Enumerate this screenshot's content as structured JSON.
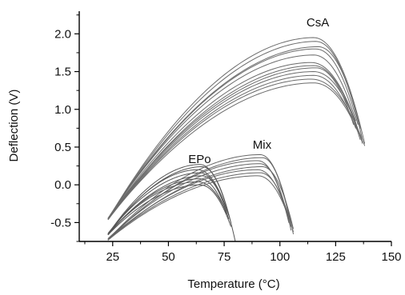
{
  "chart_data": {
    "type": "line",
    "title": "",
    "xlabel": "Temperature (°C)",
    "ylabel": "Deflection (V)",
    "xlim": [
      10,
      150
    ],
    "ylim": [
      -0.75,
      2.3
    ],
    "x_ticks": [
      25,
      50,
      75,
      100,
      125,
      150
    ],
    "y_ticks": [
      -0.5,
      0.0,
      0.5,
      1.0,
      1.5,
      2.0
    ],
    "x_tick_labels": [
      "25",
      "50",
      "75",
      "100",
      "125",
      "150"
    ],
    "y_tick_labels": [
      "-0.5",
      "0.0",
      "0.5",
      "1.0",
      "1.5",
      "2.0"
    ],
    "grid": false,
    "legend": "none",
    "groups": [
      {
        "name": "CsA",
        "color": "#6b6b6b",
        "label_at": [
          117,
          2.1
        ],
        "curves": [
          {
            "x0": 23,
            "y0": -0.45,
            "xp": 115,
            "yp": 1.95,
            "xe": 138,
            "ye": 0.55
          },
          {
            "x0": 23,
            "y0": -0.45,
            "xp": 116,
            "yp": 1.9,
            "xe": 137,
            "ye": 0.6
          },
          {
            "x0": 23,
            "y0": -0.44,
            "xp": 117,
            "yp": 1.83,
            "xe": 136,
            "ye": 0.75
          },
          {
            "x0": 23,
            "y0": -0.45,
            "xp": 116,
            "yp": 1.8,
            "xe": 135,
            "ye": 0.8
          },
          {
            "x0": 23,
            "y0": -0.44,
            "xp": 115,
            "yp": 1.72,
            "xe": 134,
            "ye": 0.85
          },
          {
            "x0": 23,
            "y0": -0.45,
            "xp": 114,
            "yp": 1.62,
            "xe": 137,
            "ye": 0.55
          },
          {
            "x0": 23,
            "y0": -0.46,
            "xp": 115,
            "yp": 1.58,
            "xe": 136,
            "ye": 0.6
          },
          {
            "x0": 23,
            "y0": -0.44,
            "xp": 116,
            "yp": 1.55,
            "xe": 133,
            "ye": 0.8
          },
          {
            "x0": 23,
            "y0": -0.45,
            "xp": 115,
            "yp": 1.5,
            "xe": 136,
            "ye": 0.65
          },
          {
            "x0": 23,
            "y0": -0.45,
            "xp": 115,
            "yp": 1.45,
            "xe": 134,
            "ye": 0.75
          },
          {
            "x0": 23,
            "y0": -0.46,
            "xp": 114,
            "yp": 1.4,
            "xe": 138,
            "ye": 0.52
          },
          {
            "x0": 23,
            "y0": -0.45,
            "xp": 115,
            "yp": 1.35,
            "xe": 135,
            "ye": 0.7
          }
        ]
      },
      {
        "name": "EPo",
        "color": "#555555",
        "label_at": [
          64,
          0.29
        ],
        "curves": [
          {
            "x0": 23,
            "y0": -0.65,
            "xp": 64,
            "yp": 0.27,
            "xe": 80,
            "ye": -0.75
          },
          {
            "x0": 23,
            "y0": -0.66,
            "xp": 65,
            "yp": 0.24,
            "xe": 78,
            "ye": -0.5
          },
          {
            "x0": 23,
            "y0": -0.65,
            "xp": 63,
            "yp": 0.2,
            "xe": 77,
            "ye": -0.4
          },
          {
            "x0": 23,
            "y0": -0.64,
            "xp": 64,
            "yp": 0.16,
            "xe": 76,
            "ye": -0.35
          },
          {
            "x0": 23,
            "y0": -0.66,
            "xp": 65,
            "yp": 0.12,
            "xe": 77,
            "ye": -0.45
          },
          {
            "x0": 23,
            "y0": -0.65,
            "xp": 64,
            "yp": 0.08,
            "xe": 76,
            "ye": -0.38
          },
          {
            "x0": 23,
            "y0": -0.65,
            "xp": 63,
            "yp": 0.04,
            "xe": 75,
            "ye": -0.3
          },
          {
            "x0": 23,
            "y0": -0.66,
            "xp": 64,
            "yp": 0.0,
            "xe": 78,
            "ye": -0.55
          }
        ]
      },
      {
        "name": "Mix",
        "color": "#666666",
        "label_at": [
          92,
          0.48
        ],
        "curves": [
          {
            "x0": 23,
            "y0": -0.72,
            "xp": 91,
            "yp": 0.4,
            "xe": 106,
            "ye": -0.65
          },
          {
            "x0": 23,
            "y0": -0.73,
            "xp": 92,
            "yp": 0.36,
            "xe": 105,
            "ye": -0.55
          },
          {
            "x0": 23,
            "y0": -0.72,
            "xp": 90,
            "yp": 0.32,
            "xe": 104,
            "ye": -0.5
          },
          {
            "x0": 23,
            "y0": -0.71,
            "xp": 91,
            "yp": 0.28,
            "xe": 105,
            "ye": -0.6
          },
          {
            "x0": 23,
            "y0": -0.73,
            "xp": 92,
            "yp": 0.24,
            "xe": 106,
            "ye": -0.58
          },
          {
            "x0": 23,
            "y0": -0.72,
            "xp": 90,
            "yp": 0.2,
            "xe": 104,
            "ye": -0.45
          },
          {
            "x0": 23,
            "y0": -0.72,
            "xp": 91,
            "yp": 0.16,
            "xe": 105,
            "ye": -0.52
          },
          {
            "x0": 23,
            "y0": -0.73,
            "xp": 90,
            "yp": 0.12,
            "xe": 106,
            "ye": -0.62
          }
        ]
      }
    ]
  }
}
